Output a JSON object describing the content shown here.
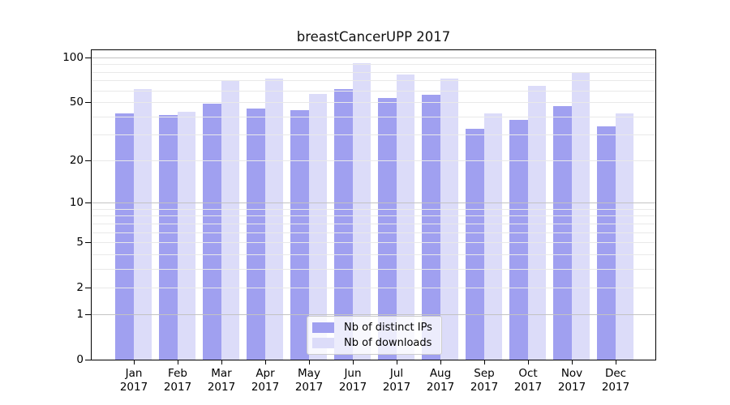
{
  "chart_data": {
    "type": "bar",
    "title": "breastCancerUPP 2017",
    "year": "2017",
    "months": [
      "Jan",
      "Feb",
      "Mar",
      "Apr",
      "May",
      "Jun",
      "Jul",
      "Aug",
      "Sep",
      "Oct",
      "Nov",
      "Dec"
    ],
    "categories": [
      "Jan 2017",
      "Feb 2017",
      "Mar 2017",
      "Apr 2017",
      "May 2017",
      "Jun 2017",
      "Jul 2017",
      "Aug 2017",
      "Sep 2017",
      "Oct 2017",
      "Nov 2017",
      "Dec 2017"
    ],
    "series": [
      {
        "name": "Nb of distinct IPs",
        "color": "#a0a0f0",
        "values": [
          42,
          41,
          49,
          45,
          44,
          61,
          53,
          56,
          33,
          38,
          47,
          34
        ]
      },
      {
        "name": "Nb of downloads",
        "color": "#dcdcf9",
        "values": [
          61,
          43,
          70,
          72,
          57,
          91,
          77,
          72,
          42,
          64,
          80,
          42
        ]
      }
    ],
    "yscale": "symlog",
    "ylim": [
      0,
      111.5
    ],
    "ytick_labels": [
      "0",
      "1",
      "2",
      "5",
      "10",
      "20",
      "50",
      "100"
    ],
    "yticks": [
      0,
      1,
      2,
      5,
      10,
      20,
      50,
      100
    ],
    "major_gridlines": [
      1,
      10,
      100
    ],
    "minor_gridlines": [
      2,
      3,
      4,
      5,
      6,
      7,
      8,
      9,
      20,
      30,
      40,
      50,
      60,
      70,
      80,
      90
    ],
    "grid": true,
    "legend_position": "lower center"
  },
  "colors": {
    "grid_major": "#c3c3c3",
    "grid_minor": "#e9e9e9",
    "spine": "#000000",
    "text": "#000000"
  }
}
